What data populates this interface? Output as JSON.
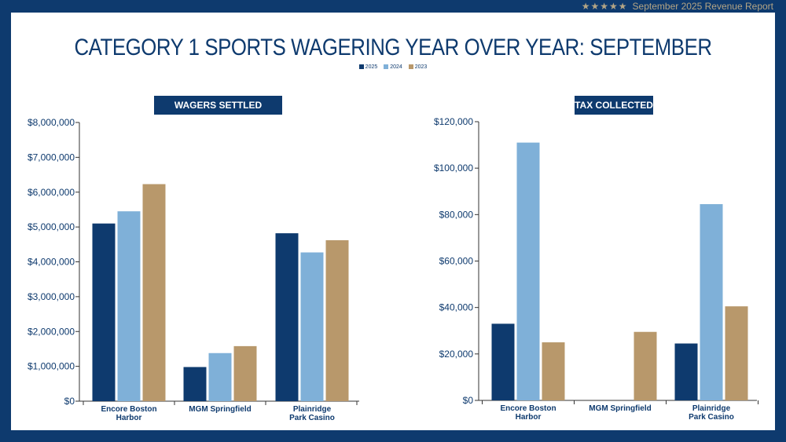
{
  "header": {
    "stars": "★★★★★",
    "report_label": "September 2025 Revenue Report"
  },
  "title": "CATEGORY 1 SPORTS WAGERING YEAR OVER YEAR: SEPTEMBER",
  "legend": [
    {
      "label": "2025",
      "color": "#0e3a6e"
    },
    {
      "label": "2024",
      "color": "#7fb0d8"
    },
    {
      "label": "2023",
      "color": "#b8986b"
    }
  ],
  "chart_data": [
    {
      "type": "bar",
      "title": "WAGERS SETTLED",
      "categories": [
        [
          "Encore Boston",
          "Harbor"
        ],
        [
          "MGM Springfield"
        ],
        [
          "Plainridge",
          "Park Casino"
        ]
      ],
      "series": [
        {
          "name": "2025",
          "values": [
            5100000,
            980000,
            4820000
          ]
        },
        {
          "name": "2024",
          "values": [
            5450000,
            1380000,
            4270000
          ]
        },
        {
          "name": "2023",
          "values": [
            6230000,
            1580000,
            4620000
          ]
        }
      ],
      "ylim": [
        0,
        8000000
      ],
      "ticks": [
        0,
        1000000,
        2000000,
        3000000,
        4000000,
        5000000,
        6000000,
        7000000,
        8000000
      ],
      "tick_labels": [
        "$0",
        "$1,000,000",
        "$2,000,000",
        "$3,000,000",
        "$4,000,000",
        "$5,000,000",
        "$6,000,000",
        "$7,000,000",
        "$8,000,000"
      ]
    },
    {
      "type": "bar",
      "title": "TAX COLLECTED",
      "categories": [
        [
          "Encore Boston",
          "Harbor"
        ],
        [
          "MGM Springfield"
        ],
        [
          "Plainridge",
          "Park Casino"
        ]
      ],
      "series": [
        {
          "name": "2025",
          "values": [
            33000,
            0,
            24500
          ]
        },
        {
          "name": "2024",
          "values": [
            111000,
            0,
            84500
          ]
        },
        {
          "name": "2023",
          "values": [
            25000,
            29500,
            40500
          ]
        }
      ],
      "ylim": [
        0,
        120000
      ],
      "ticks": [
        0,
        20000,
        40000,
        60000,
        80000,
        100000,
        120000
      ],
      "tick_labels": [
        "$0",
        "$20,000",
        "$40,000",
        "$60,000",
        "$80,000",
        "$100,000",
        "$120,000"
      ]
    }
  ]
}
